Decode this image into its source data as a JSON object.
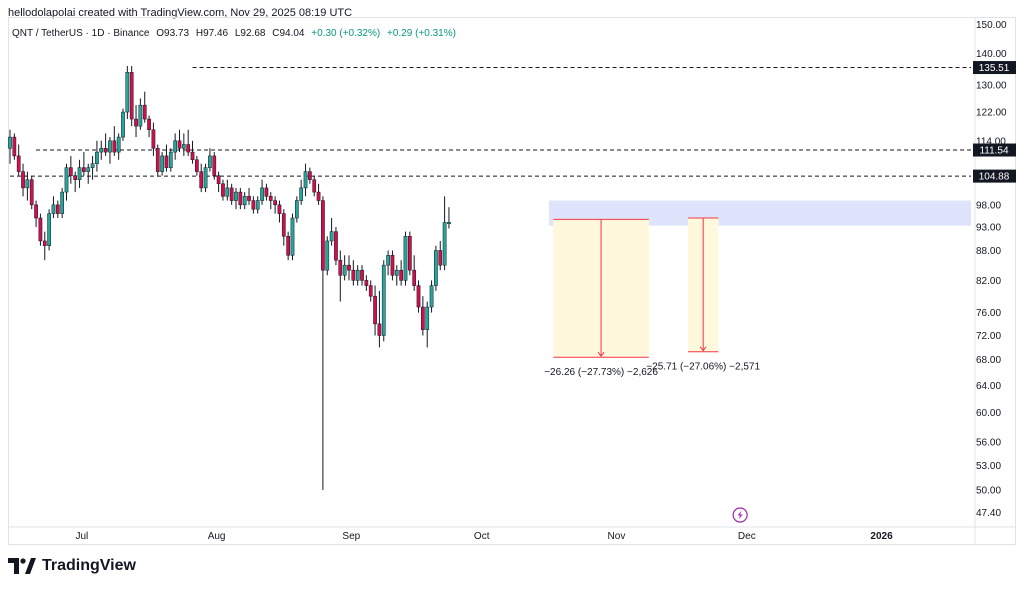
{
  "header": {
    "credit": "hellodolapolai created with TradingView.com, Nov 29, 2025 08:19 UTC"
  },
  "symbol": {
    "name": "QNT / TetherUS · 1D · Binance",
    "open": "O93.73",
    "high": "H97.46",
    "low": "L92.68",
    "close": "C94.04",
    "change": "+0.30 (+0.32%)",
    "change2": "+0.29 (+0.31%)"
  },
  "brand": {
    "name": "TradingView"
  },
  "colors": {
    "up": "#26a69a",
    "down": "#d0104c",
    "zone": "#dde4fb",
    "measure_fill": "#fff8dc",
    "measure_line": "#f23645"
  },
  "chart_data": {
    "type": "candlestick",
    "title": "",
    "y_scale": "log",
    "ylim": [
      45,
      152
    ],
    "y_ticks": [
      "150.00",
      "140.00",
      "130.00",
      "122.00",
      "114.00",
      "98.00",
      "93.00",
      "88.00",
      "82.00",
      "76.00",
      "72.00",
      "68.00",
      "64.00",
      "60.00",
      "56.00",
      "53.00",
      "50.00",
      "47.40"
    ],
    "x_ticks": [
      {
        "label": "Jul",
        "day": 17
      },
      {
        "label": "Aug",
        "day": 48
      },
      {
        "label": "Sep",
        "day": 79
      },
      {
        "label": "Oct",
        "day": 109
      },
      {
        "label": "Nov",
        "day": 140
      },
      {
        "label": "Dec",
        "day": 170
      },
      {
        "label": "2026",
        "day": 201
      }
    ],
    "candles": [
      {
        "o": 112,
        "h": 117,
        "l": 108,
        "c": 115
      },
      {
        "o": 115,
        "h": 116,
        "l": 109,
        "c": 110
      },
      {
        "o": 110,
        "h": 113,
        "l": 105,
        "c": 106
      },
      {
        "o": 106,
        "h": 108,
        "l": 100,
        "c": 102
      },
      {
        "o": 102,
        "h": 106,
        "l": 99,
        "c": 104
      },
      {
        "o": 104,
        "h": 105,
        "l": 97,
        "c": 98
      },
      {
        "o": 98,
        "h": 99,
        "l": 93,
        "c": 95
      },
      {
        "o": 95,
        "h": 96,
        "l": 89,
        "c": 90
      },
      {
        "o": 90,
        "h": 92,
        "l": 86,
        "c": 89
      },
      {
        "o": 89,
        "h": 97,
        "l": 88,
        "c": 96
      },
      {
        "o": 96,
        "h": 100,
        "l": 95,
        "c": 98
      },
      {
        "o": 98,
        "h": 99,
        "l": 95,
        "c": 96
      },
      {
        "o": 96,
        "h": 102,
        "l": 95,
        "c": 101
      },
      {
        "o": 101,
        "h": 108,
        "l": 99,
        "c": 107
      },
      {
        "o": 107,
        "h": 110,
        "l": 103,
        "c": 105
      },
      {
        "o": 105,
        "h": 106,
        "l": 101,
        "c": 104
      },
      {
        "o": 104,
        "h": 109,
        "l": 102,
        "c": 107
      },
      {
        "o": 107,
        "h": 111,
        "l": 105,
        "c": 106
      },
      {
        "o": 106,
        "h": 108,
        "l": 103,
        "c": 107
      },
      {
        "o": 107,
        "h": 110,
        "l": 104,
        "c": 108
      },
      {
        "o": 108,
        "h": 114,
        "l": 106,
        "c": 111
      },
      {
        "o": 111,
        "h": 114,
        "l": 109,
        "c": 112
      },
      {
        "o": 112,
        "h": 116,
        "l": 110,
        "c": 111
      },
      {
        "o": 111,
        "h": 115,
        "l": 108,
        "c": 114
      },
      {
        "o": 114,
        "h": 118,
        "l": 110,
        "c": 111
      },
      {
        "o": 111,
        "h": 116,
        "l": 109,
        "c": 115
      },
      {
        "o": 115,
        "h": 123,
        "l": 114,
        "c": 122
      },
      {
        "o": 122,
        "h": 136,
        "l": 120,
        "c": 134
      },
      {
        "o": 134,
        "h": 136,
        "l": 118,
        "c": 120
      },
      {
        "o": 120,
        "h": 124,
        "l": 115,
        "c": 118
      },
      {
        "o": 118,
        "h": 126,
        "l": 117,
        "c": 124
      },
      {
        "o": 124,
        "h": 128,
        "l": 119,
        "c": 120
      },
      {
        "o": 120,
        "h": 121,
        "l": 115,
        "c": 117
      },
      {
        "o": 117,
        "h": 119,
        "l": 110,
        "c": 112
      },
      {
        "o": 112,
        "h": 113,
        "l": 105,
        "c": 106
      },
      {
        "o": 106,
        "h": 111,
        "l": 105,
        "c": 110
      },
      {
        "o": 110,
        "h": 113,
        "l": 106,
        "c": 107
      },
      {
        "o": 107,
        "h": 112,
        "l": 106,
        "c": 111
      },
      {
        "o": 111,
        "h": 116,
        "l": 109,
        "c": 114
      },
      {
        "o": 114,
        "h": 117,
        "l": 111,
        "c": 112
      },
      {
        "o": 112,
        "h": 116,
        "l": 110,
        "c": 113
      },
      {
        "o": 113,
        "h": 117,
        "l": 110,
        "c": 111
      },
      {
        "o": 111,
        "h": 114,
        "l": 108,
        "c": 109
      },
      {
        "o": 109,
        "h": 110,
        "l": 105,
        "c": 106
      },
      {
        "o": 106,
        "h": 108,
        "l": 101,
        "c": 102
      },
      {
        "o": 102,
        "h": 108,
        "l": 101,
        "c": 107
      },
      {
        "o": 107,
        "h": 112,
        "l": 106,
        "c": 110
      },
      {
        "o": 110,
        "h": 111,
        "l": 104,
        "c": 105
      },
      {
        "o": 105,
        "h": 106,
        "l": 101,
        "c": 103
      },
      {
        "o": 103,
        "h": 104,
        "l": 99,
        "c": 100
      },
      {
        "o": 100,
        "h": 104,
        "l": 99,
        "c": 102
      },
      {
        "o": 102,
        "h": 103,
        "l": 98,
        "c": 99
      },
      {
        "o": 99,
        "h": 102,
        "l": 97,
        "c": 101
      },
      {
        "o": 101,
        "h": 102,
        "l": 97,
        "c": 98
      },
      {
        "o": 98,
        "h": 101,
        "l": 97,
        "c": 100
      },
      {
        "o": 100,
        "h": 102,
        "l": 98,
        "c": 99
      },
      {
        "o": 99,
        "h": 100,
        "l": 96,
        "c": 97
      },
      {
        "o": 97,
        "h": 100,
        "l": 96,
        "c": 99
      },
      {
        "o": 99,
        "h": 104,
        "l": 98,
        "c": 102
      },
      {
        "o": 102,
        "h": 103,
        "l": 99,
        "c": 100
      },
      {
        "o": 100,
        "h": 101,
        "l": 97,
        "c": 99
      },
      {
        "o": 99,
        "h": 100,
        "l": 96,
        "c": 98
      },
      {
        "o": 98,
        "h": 99,
        "l": 94,
        "c": 96
      },
      {
        "o": 96,
        "h": 97,
        "l": 89,
        "c": 91
      },
      {
        "o": 91,
        "h": 92,
        "l": 86,
        "c": 87
      },
      {
        "o": 87,
        "h": 96,
        "l": 86,
        "c": 95
      },
      {
        "o": 95,
        "h": 100,
        "l": 94,
        "c": 99
      },
      {
        "o": 99,
        "h": 104,
        "l": 98,
        "c": 102
      },
      {
        "o": 102,
        "h": 108,
        "l": 100,
        "c": 106
      },
      {
        "o": 106,
        "h": 107,
        "l": 103,
        "c": 104
      },
      {
        "o": 104,
        "h": 105,
        "l": 100,
        "c": 101
      },
      {
        "o": 101,
        "h": 103,
        "l": 98,
        "c": 99
      },
      {
        "o": 99,
        "h": 100,
        "l": 50,
        "c": 84
      },
      {
        "o": 84,
        "h": 91,
        "l": 83,
        "c": 90
      },
      {
        "o": 90,
        "h": 95,
        "l": 89,
        "c": 92
      },
      {
        "o": 92,
        "h": 93,
        "l": 85,
        "c": 86
      },
      {
        "o": 86,
        "h": 88,
        "l": 78,
        "c": 83
      },
      {
        "o": 83,
        "h": 87,
        "l": 82,
        "c": 85
      },
      {
        "o": 85,
        "h": 87,
        "l": 82,
        "c": 84
      },
      {
        "o": 84,
        "h": 86,
        "l": 81,
        "c": 82
      },
      {
        "o": 82,
        "h": 85,
        "l": 81,
        "c": 84
      },
      {
        "o": 84,
        "h": 85,
        "l": 81,
        "c": 82
      },
      {
        "o": 82,
        "h": 83,
        "l": 80,
        "c": 81
      },
      {
        "o": 81,
        "h": 82,
        "l": 78,
        "c": 79
      },
      {
        "o": 79,
        "h": 81,
        "l": 72,
        "c": 74
      },
      {
        "o": 74,
        "h": 80,
        "l": 70,
        "c": 72
      },
      {
        "o": 72,
        "h": 86,
        "l": 71,
        "c": 85
      },
      {
        "o": 85,
        "h": 88,
        "l": 83,
        "c": 87
      },
      {
        "o": 87,
        "h": 88,
        "l": 82,
        "c": 83
      },
      {
        "o": 83,
        "h": 85,
        "l": 81,
        "c": 84
      },
      {
        "o": 84,
        "h": 86,
        "l": 81,
        "c": 82
      },
      {
        "o": 82,
        "h": 92,
        "l": 81,
        "c": 91
      },
      {
        "o": 91,
        "h": 92,
        "l": 83,
        "c": 84
      },
      {
        "o": 84,
        "h": 87,
        "l": 80,
        "c": 81
      },
      {
        "o": 81,
        "h": 82,
        "l": 76,
        "c": 77
      },
      {
        "o": 77,
        "h": 79,
        "l": 72,
        "c": 73
      },
      {
        "o": 73,
        "h": 78,
        "l": 70,
        "c": 77
      },
      {
        "o": 77,
        "h": 82,
        "l": 76,
        "c": 81
      },
      {
        "o": 81,
        "h": 89,
        "l": 80,
        "c": 88
      },
      {
        "o": 88,
        "h": 90,
        "l": 84,
        "c": 85
      },
      {
        "o": 85,
        "h": 100,
        "l": 84,
        "c": 94
      },
      {
        "o": 93.73,
        "h": 97.46,
        "l": 92.68,
        "c": 94.04
      }
    ],
    "horizontal_levels": [
      {
        "label": "135.51",
        "value": 135.51
      },
      {
        "label": "111.54",
        "value": 111.54
      },
      {
        "label": "104.88",
        "value": 104.88
      }
    ],
    "zone": {
      "from": 93.3,
      "to": 99
    },
    "measures": [
      {
        "label": "−26.26 (−27.73%) −2,626",
        "from": 94.7,
        "to": 68.4
      },
      {
        "label": "−25.71 (−27.06%) −2,571",
        "from": 95.0,
        "to": 69.3
      }
    ]
  }
}
